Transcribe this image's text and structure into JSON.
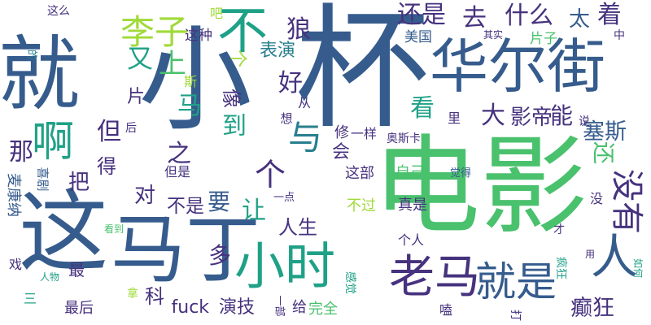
{
  "palette": {
    "indigo": "#46327e",
    "blue": "#365c8d",
    "teal": "#277f8e",
    "green": "#1fa187",
    "lime": "#4ac16d",
    "yellow": "#a0da39",
    "purple": "#440154"
  },
  "words": [
    {
      "text": "就",
      "color": "#365c8d"
    },
    {
      "text": "小",
      "color": "#365c8d"
    },
    {
      "text": "杯",
      "color": "#365c8d"
    },
    {
      "text": "不",
      "color": "#1fa187"
    },
    {
      "text": "华尔街",
      "color": "#365c8d"
    },
    {
      "text": "电影",
      "color": "#4ac16d"
    },
    {
      "text": "这",
      "color": "#365c8d"
    },
    {
      "text": "马丁",
      "color": "#365c8d"
    },
    {
      "text": "老马",
      "color": "#46327e"
    },
    {
      "text": "小时",
      "color": "#1fa187"
    },
    {
      "text": "就是",
      "color": "#365c8d"
    },
    {
      "text": "人",
      "color": "#365c8d"
    },
    {
      "text": "没有",
      "color": "#46327e"
    },
    {
      "text": "啊",
      "color": "#1fa187"
    },
    {
      "text": "李子",
      "color": "#a0da39"
    },
    {
      "text": "又",
      "color": "#1fa187"
    },
    {
      "text": "上",
      "color": "#4ac16d"
    },
    {
      "text": "狼",
      "color": "#46327e"
    },
    {
      "text": "还是",
      "color": "#46327e"
    },
    {
      "text": "去",
      "color": "#46327e"
    },
    {
      "text": "什么",
      "color": "#46327e"
    },
    {
      "text": "太",
      "color": "#365c8d"
    },
    {
      "text": "着",
      "color": "#46327e"
    },
    {
      "text": "表演",
      "color": "#277f8e"
    },
    {
      "text": "好",
      "color": "#46327e"
    },
    {
      "text": "个",
      "color": "#a0da39"
    },
    {
      "text": "这种",
      "color": "#46327e"
    },
    {
      "text": "美国",
      "color": "#365c8d"
    },
    {
      "text": "片子",
      "color": "#4ac16d"
    },
    {
      "text": "其实",
      "color": "#46327e"
    },
    {
      "text": "中",
      "color": "#46327e"
    },
    {
      "text": "吧",
      "color": "#a0da39"
    },
    {
      "text": "这么",
      "color": "#46327e"
    },
    {
      "text": "的",
      "color": "#277f8e"
    },
    {
      "text": "看",
      "color": "#1fa187"
    },
    {
      "text": "大",
      "color": "#46327e"
    },
    {
      "text": "影帝",
      "color": "#46327e"
    },
    {
      "text": "能",
      "color": "#46327e"
    },
    {
      "text": "塞斯",
      "color": "#365c8d"
    },
    {
      "text": "马",
      "color": "#1fa187"
    },
    {
      "text": "与",
      "color": "#277f8e"
    },
    {
      "text": "之",
      "color": "#46327e"
    },
    {
      "text": "到",
      "color": "#1fa187"
    },
    {
      "text": "但",
      "color": "#46327e"
    },
    {
      "text": "那",
      "color": "#46327e"
    },
    {
      "text": "把",
      "color": "#46327e"
    },
    {
      "text": "得",
      "color": "#46327e"
    },
    {
      "text": "片",
      "color": "#46327e"
    },
    {
      "text": "斯",
      "color": "#a0da39"
    },
    {
      "text": "后",
      "color": "#46327e"
    },
    {
      "text": "像",
      "color": "#46327e"
    },
    {
      "text": "从",
      "color": "#46327e"
    },
    {
      "text": "想",
      "color": "#46327e"
    },
    {
      "text": "里",
      "color": "#46327e"
    },
    {
      "text": "修",
      "color": "#46327e"
    },
    {
      "text": "一样",
      "color": "#46327e"
    },
    {
      "text": "会",
      "color": "#46327e"
    },
    {
      "text": "奥斯卡",
      "color": "#46327e"
    },
    {
      "text": "说",
      "color": "#46327e"
    },
    {
      "text": "还",
      "color": "#4ac16d"
    },
    {
      "text": "个",
      "color": "#46327e"
    },
    {
      "text": "对",
      "color": "#46327e"
    },
    {
      "text": "不是",
      "color": "#46327e"
    },
    {
      "text": "要",
      "color": "#365c8d"
    },
    {
      "text": "让",
      "color": "#1fa187"
    },
    {
      "text": "这部",
      "color": "#46327e"
    },
    {
      "text": "自己",
      "color": "#4ac16d"
    },
    {
      "text": "觉得",
      "color": "#365c8d"
    },
    {
      "text": "但是",
      "color": "#46327e"
    },
    {
      "text": "麦康纳",
      "color": "#365c8d"
    },
    {
      "text": "喜剧",
      "color": "#365c8d"
    },
    {
      "text": "一点",
      "color": "#46327e"
    },
    {
      "text": "不过",
      "color": "#a0da39"
    },
    {
      "text": "真是",
      "color": "#46327e"
    },
    {
      "text": "没",
      "color": "#46327e"
    },
    {
      "text": "人生",
      "color": "#46327e"
    },
    {
      "text": "才",
      "color": "#46327e"
    },
    {
      "text": "个人",
      "color": "#46327e"
    },
    {
      "text": "多",
      "color": "#46327e"
    },
    {
      "text": "看到",
      "color": "#4ac16d"
    },
    {
      "text": "用",
      "color": "#46327e"
    },
    {
      "text": "疯狂",
      "color": "#1fa187"
    },
    {
      "text": "如何",
      "color": "#1fa187"
    },
    {
      "text": "戏",
      "color": "#46327e"
    },
    {
      "text": "人物",
      "color": "#1fa187"
    },
    {
      "text": "最",
      "color": "#46327e"
    },
    {
      "text": "感觉",
      "color": "#1fa187"
    },
    {
      "text": "科",
      "color": "#46327e"
    },
    {
      "text": "癫狂",
      "color": "#46327e"
    },
    {
      "text": "三",
      "color": "#1fa187"
    },
    {
      "text": "拿",
      "color": "#a0da39"
    },
    {
      "text": "最后",
      "color": "#46327e"
    },
    {
      "text": "fuck",
      "color": "#46327e"
    },
    {
      "text": "演技",
      "color": "#46327e"
    },
    {
      "text": "一部",
      "color": "#46327e"
    },
    {
      "text": "给",
      "color": "#46327e"
    },
    {
      "text": "完全",
      "color": "#4ac16d"
    },
    {
      "text": "嗑",
      "color": "#46327e"
    },
    {
      "text": "打",
      "color": "#46327e"
    }
  ]
}
